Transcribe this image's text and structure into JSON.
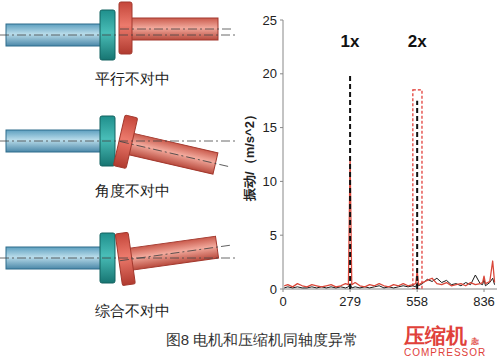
{
  "diagrams": [
    {
      "label": "平行不对中"
    },
    {
      "label": "角度不对中"
    },
    {
      "label": "综合不对中"
    }
  ],
  "chart_data": {
    "type": "line",
    "ylabel": "振动/（m/s^2）",
    "x": [
      5,
      20,
      40,
      60,
      80,
      100,
      120,
      140,
      160,
      180,
      200,
      220,
      240,
      260,
      272,
      279,
      286,
      300,
      320,
      340,
      360,
      380,
      400,
      420,
      440,
      460,
      480,
      500,
      520,
      540,
      552,
      558,
      564,
      580,
      600,
      620,
      640,
      660,
      680,
      700,
      720,
      740,
      760,
      780,
      800,
      820,
      830,
      836,
      842,
      860,
      872,
      880
    ],
    "series": [
      {
        "color": "#1a1a1a",
        "values": [
          0.1,
          0.2,
          0.1,
          0.2,
          0.1,
          0.1,
          0.2,
          0.1,
          0.2,
          0.1,
          0.2,
          0.1,
          0.2,
          0.1,
          0.2,
          0.5,
          0.1,
          0.2,
          0.1,
          0.2,
          0.1,
          0.2,
          0.3,
          0.1,
          0.2,
          0.1,
          0.2,
          0.3,
          0.2,
          0.3,
          0.2,
          0.6,
          0.3,
          0.5,
          0.9,
          0.7,
          1.0,
          0.6,
          0.8,
          0.4,
          0.5,
          0.3,
          0.6,
          0.4,
          1.3,
          0.5,
          0.4,
          0.9,
          0.3,
          0.6,
          1.0,
          0.4
        ]
      },
      {
        "color": "#d9473a",
        "values": [
          0.3,
          0.4,
          0.2,
          0.5,
          0.3,
          0.2,
          0.4,
          0.3,
          0.2,
          0.3,
          0.4,
          0.2,
          0.3,
          0.5,
          0.4,
          12.3,
          0.4,
          0.6,
          0.3,
          0.2,
          0.4,
          0.3,
          0.5,
          0.3,
          0.2,
          0.4,
          0.3,
          0.5,
          0.3,
          0.4,
          0.5,
          1.7,
          0.4,
          0.6,
          0.8,
          1.0,
          0.5,
          0.4,
          0.6,
          0.3,
          0.4,
          0.5,
          0.3,
          0.6,
          0.4,
          0.5,
          0.6,
          1.2,
          0.5,
          0.7,
          2.6,
          0.6
        ]
      }
    ],
    "xlim": [
      0,
      890
    ],
    "ylim": [
      0,
      25
    ],
    "xticks": [
      0,
      279,
      558,
      836
    ],
    "yticks": [
      0,
      5,
      10,
      15,
      20,
      25
    ],
    "grid": false,
    "annotations": [
      {
        "label": "1x",
        "x": 279,
        "y": 20,
        "label_y": 22.5
      },
      {
        "label": "2x",
        "x": 558,
        "y": 17.5,
        "label_y": 22.5
      }
    ],
    "highlight": {
      "x0": 540,
      "x1": 578,
      "y0": 0,
      "y1": 18.5,
      "color": "#e0302a"
    }
  },
  "caption": "图8 电机和压缩机同轴度异常",
  "watermark": {
    "title": "压缩机",
    "side": "杂志",
    "subtitle": "COMPRESSOR"
  }
}
